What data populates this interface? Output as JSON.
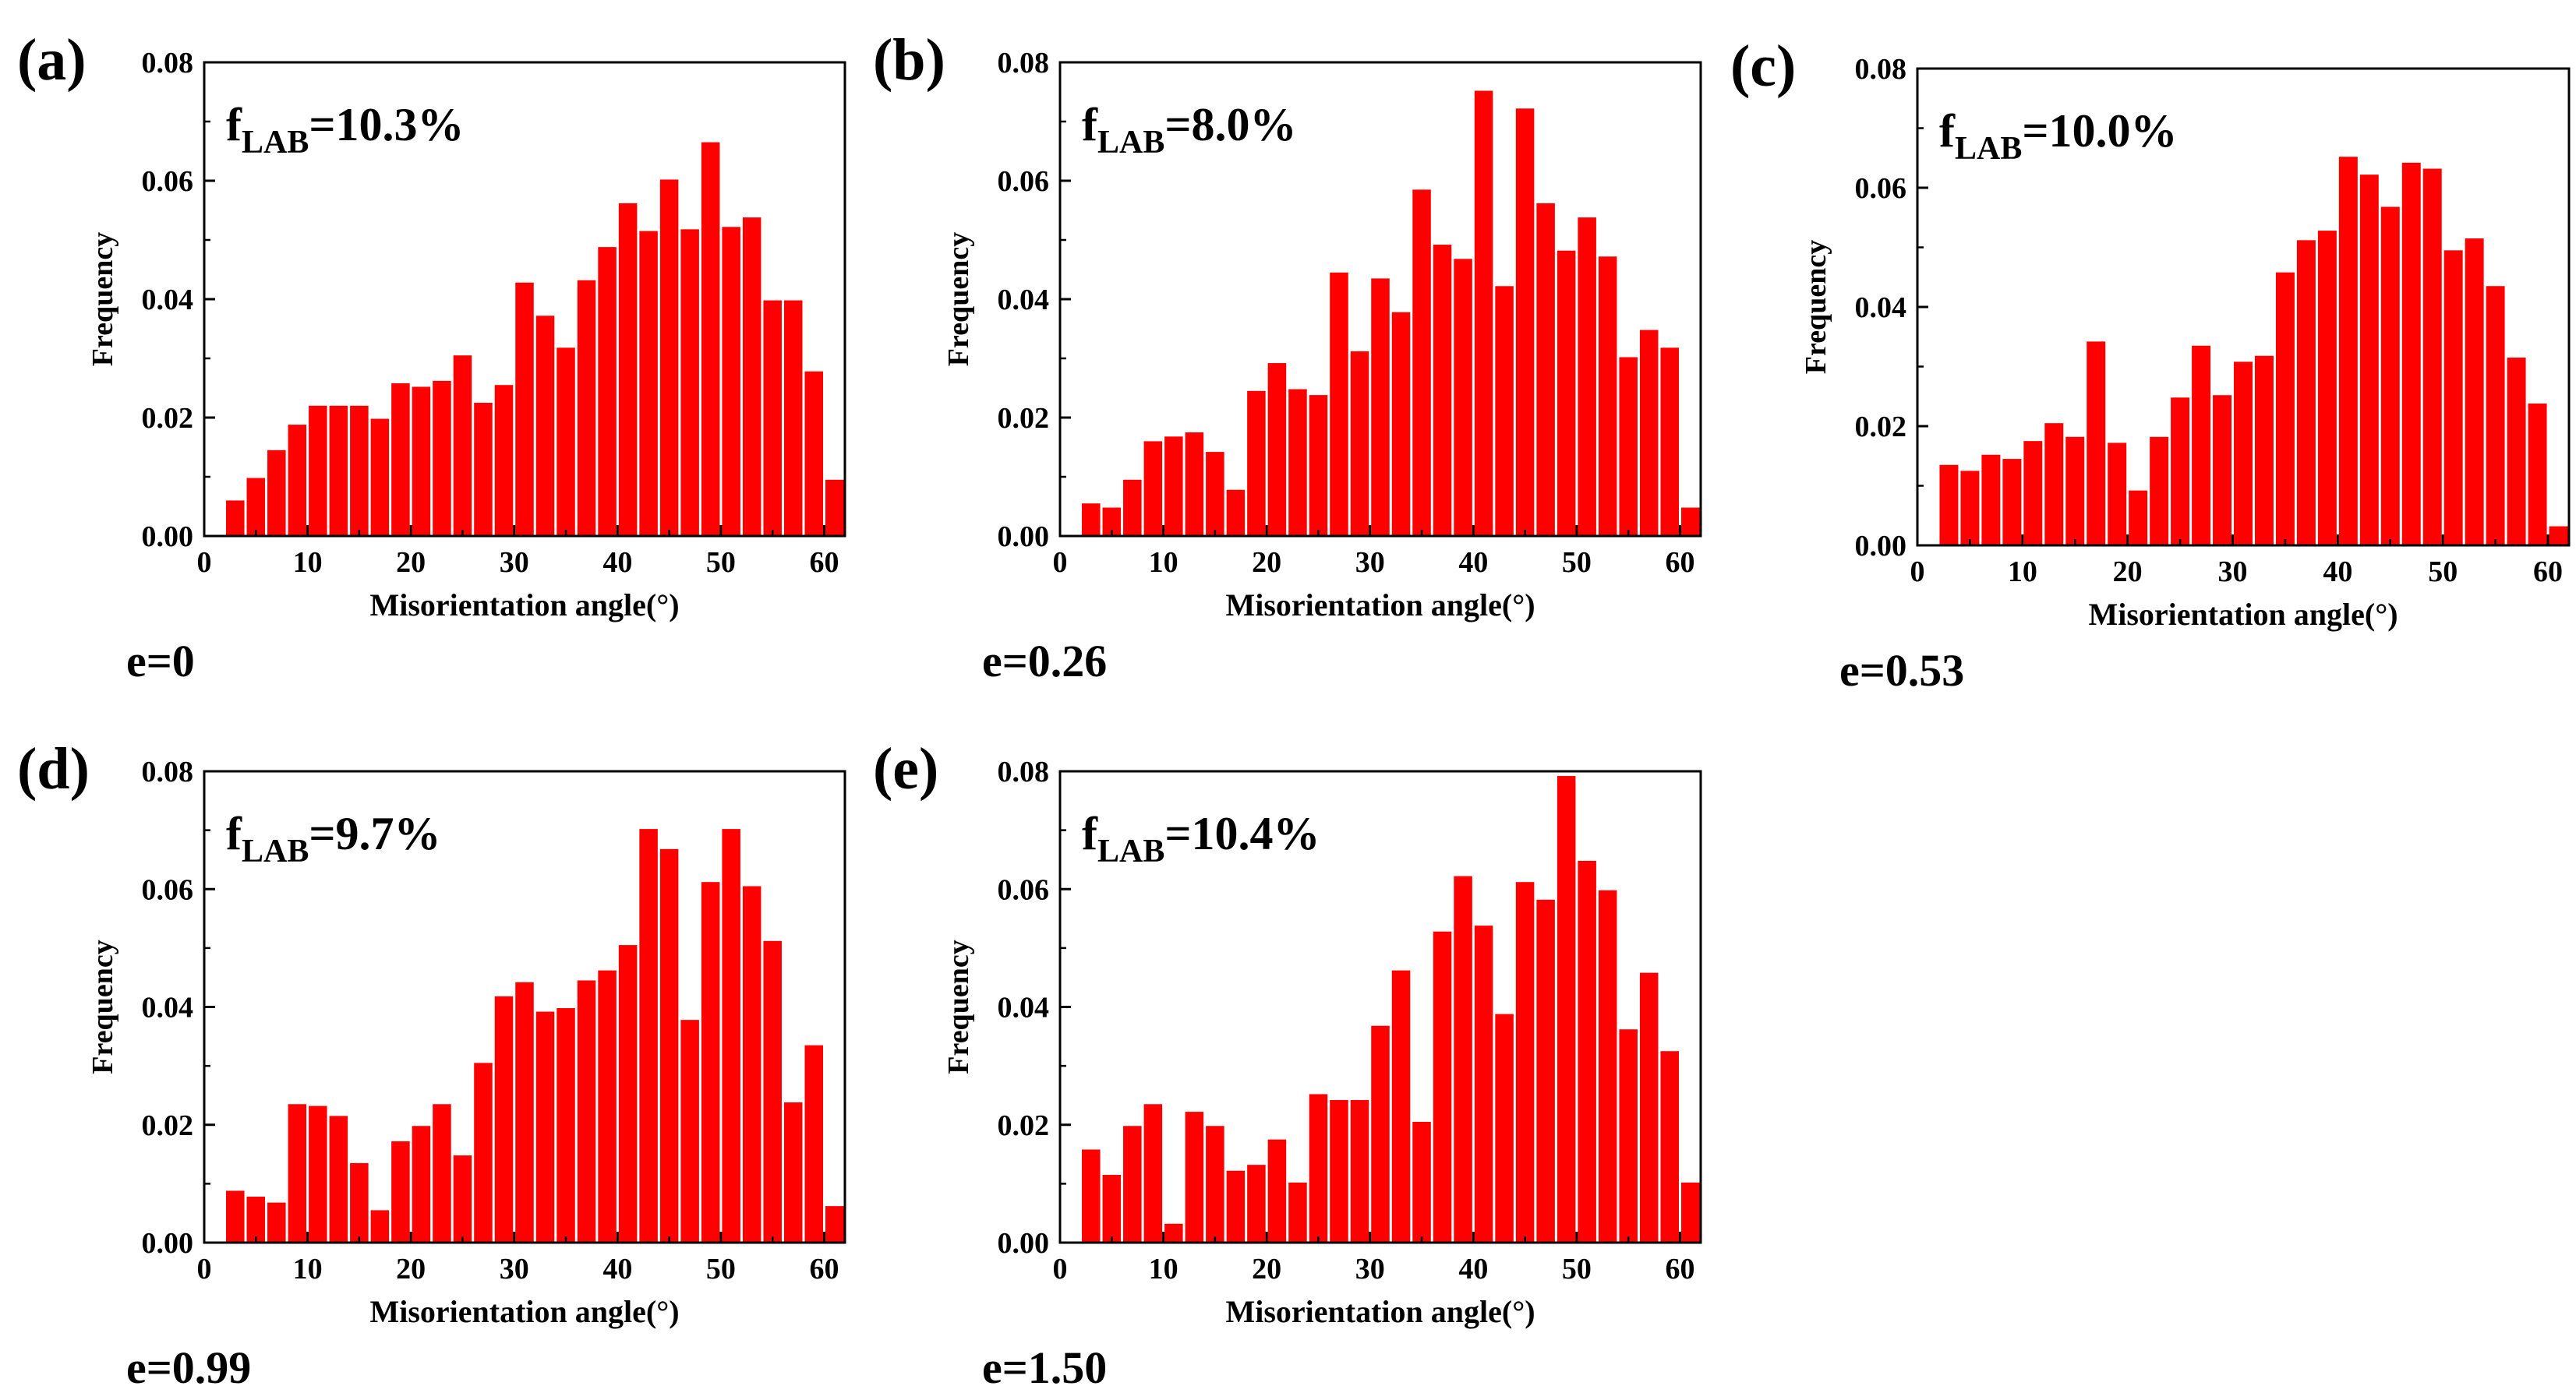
{
  "figure": {
    "xlabel": "Misorientation angle(°)",
    "ylabel": "Frequency",
    "bar_color": "#ff0000"
  },
  "chart_data": [
    {
      "type": "bar",
      "panel": "(a)",
      "annotation": {
        "main": "f",
        "sub": "LAB",
        "rest": "=10.3%"
      },
      "condition": "e=0",
      "xlabel": "Misorientation angle(°)",
      "ylabel": "Frequency",
      "xlim": [
        0,
        62
      ],
      "ylim": [
        0,
        0.08
      ],
      "xticks": [
        "0",
        "10",
        "20",
        "30",
        "40",
        "50",
        "60"
      ],
      "yticks": [
        "0.00",
        "0.02",
        "0.04",
        "0.06",
        "0.08"
      ],
      "bin_width": 2,
      "x": [
        3,
        5,
        7,
        9,
        11,
        13,
        15,
        17,
        19,
        21,
        23,
        25,
        27,
        29,
        31,
        33,
        35,
        37,
        39,
        41,
        43,
        45,
        47,
        49,
        51,
        53,
        55,
        57,
        59,
        61
      ],
      "values": [
        0.006,
        0.0098,
        0.0145,
        0.0188,
        0.022,
        0.022,
        0.022,
        0.0198,
        0.0258,
        0.0252,
        0.0262,
        0.0305,
        0.0225,
        0.0255,
        0.0428,
        0.0372,
        0.0318,
        0.0432,
        0.0488,
        0.0562,
        0.0515,
        0.0602,
        0.0518,
        0.0665,
        0.0522,
        0.0538,
        0.0398,
        0.0398,
        0.0278,
        0.0095
      ]
    },
    {
      "type": "bar",
      "panel": "(b)",
      "annotation": {
        "main": "f",
        "sub": "LAB",
        "rest": "=8.0%"
      },
      "condition": "e=0.26",
      "xlabel": "Misorientation angle(°)",
      "ylabel": "Frequency",
      "xlim": [
        0,
        62
      ],
      "ylim": [
        0,
        0.08
      ],
      "xticks": [
        "0",
        "10",
        "20",
        "30",
        "40",
        "50",
        "60"
      ],
      "yticks": [
        "0.00",
        "0.02",
        "0.04",
        "0.06",
        "0.08"
      ],
      "bin_width": 2,
      "x": [
        3,
        5,
        7,
        9,
        11,
        13,
        15,
        17,
        19,
        21,
        23,
        25,
        27,
        29,
        31,
        33,
        35,
        37,
        39,
        41,
        43,
        45,
        47,
        49,
        51,
        53,
        55,
        57,
        59,
        61
      ],
      "values": [
        0.0055,
        0.0048,
        0.0095,
        0.016,
        0.0168,
        0.0175,
        0.0142,
        0.0078,
        0.0245,
        0.0292,
        0.0248,
        0.0238,
        0.0445,
        0.0312,
        0.0435,
        0.0378,
        0.0585,
        0.0492,
        0.0468,
        0.0752,
        0.0422,
        0.0722,
        0.0562,
        0.0482,
        0.0538,
        0.0472,
        0.0302,
        0.0348,
        0.0318,
        0.0048
      ]
    },
    {
      "type": "bar",
      "panel": "(c)",
      "annotation": {
        "main": "f",
        "sub": "LAB",
        "rest": "=10.0%"
      },
      "condition": "e=0.53",
      "xlabel": "Misorientation angle(°)",
      "ylabel": "Frequency",
      "xlim": [
        0,
        62
      ],
      "ylim": [
        0,
        0.08
      ],
      "xticks": [
        "0",
        "10",
        "20",
        "30",
        "40",
        "50",
        "60"
      ],
      "yticks": [
        "0.00",
        "0.02",
        "0.04",
        "0.06",
        "0.08"
      ],
      "bin_width": 2,
      "x": [
        3,
        5,
        7,
        9,
        11,
        13,
        15,
        17,
        19,
        21,
        23,
        25,
        27,
        29,
        31,
        33,
        35,
        37,
        39,
        41,
        43,
        45,
        47,
        49,
        51,
        53,
        55,
        57,
        59,
        61
      ],
      "values": [
        0.0135,
        0.0125,
        0.0152,
        0.0145,
        0.0175,
        0.0205,
        0.0182,
        0.0342,
        0.0172,
        0.0092,
        0.0182,
        0.0248,
        0.0335,
        0.0252,
        0.0308,
        0.0318,
        0.0458,
        0.0512,
        0.0528,
        0.0652,
        0.0622,
        0.0568,
        0.0642,
        0.0632,
        0.0495,
        0.0515,
        0.0435,
        0.0315,
        0.0238,
        0.0032
      ]
    },
    {
      "type": "bar",
      "panel": "(d)",
      "annotation": {
        "main": "f",
        "sub": "LAB",
        "rest": "=9.7%"
      },
      "condition": "e=0.99",
      "xlabel": "Misorientation angle(°)",
      "ylabel": "Frequency",
      "xlim": [
        0,
        62
      ],
      "ylim": [
        0,
        0.08
      ],
      "xticks": [
        "0",
        "10",
        "20",
        "30",
        "40",
        "50",
        "60"
      ],
      "yticks": [
        "0.00",
        "0.02",
        "0.04",
        "0.06",
        "0.08"
      ],
      "bin_width": 2,
      "x": [
        3,
        5,
        7,
        9,
        11,
        13,
        15,
        17,
        19,
        21,
        23,
        25,
        27,
        29,
        31,
        33,
        35,
        37,
        39,
        41,
        43,
        45,
        47,
        49,
        51,
        53,
        55,
        57,
        59,
        61
      ],
      "values": [
        0.0088,
        0.0078,
        0.0068,
        0.0235,
        0.0232,
        0.0215,
        0.0135,
        0.0055,
        0.0172,
        0.0198,
        0.0235,
        0.0148,
        0.0305,
        0.0418,
        0.0442,
        0.0392,
        0.0398,
        0.0445,
        0.0462,
        0.0505,
        0.0702,
        0.0668,
        0.0378,
        0.0612,
        0.0702,
        0.0605,
        0.0512,
        0.0238,
        0.0335,
        0.0062
      ]
    },
    {
      "type": "bar",
      "panel": "(e)",
      "annotation": {
        "main": "f",
        "sub": "LAB",
        "rest": "=10.4%"
      },
      "condition": "e=1.50",
      "xlabel": "Misorientation angle(°)",
      "ylabel": "Frequency",
      "xlim": [
        0,
        62
      ],
      "ylim": [
        0,
        0.08
      ],
      "xticks": [
        "0",
        "10",
        "20",
        "30",
        "40",
        "50",
        "60"
      ],
      "yticks": [
        "0.00",
        "0.02",
        "0.04",
        "0.06",
        "0.08"
      ],
      "bin_width": 2,
      "x": [
        3,
        5,
        7,
        9,
        11,
        13,
        15,
        17,
        19,
        21,
        23,
        25,
        27,
        29,
        31,
        33,
        35,
        37,
        39,
        41,
        43,
        45,
        47,
        49,
        51,
        53,
        55,
        57,
        59,
        61
      ],
      "values": [
        0.0158,
        0.0115,
        0.0198,
        0.0235,
        0.0032,
        0.0222,
        0.0198,
        0.0122,
        0.0132,
        0.0175,
        0.0102,
        0.0252,
        0.0242,
        0.0242,
        0.0368,
        0.0462,
        0.0205,
        0.0528,
        0.0622,
        0.0538,
        0.0388,
        0.0612,
        0.0582,
        0.0792,
        0.0648,
        0.0598,
        0.0362,
        0.0458,
        0.0325,
        0.0102
      ]
    }
  ]
}
